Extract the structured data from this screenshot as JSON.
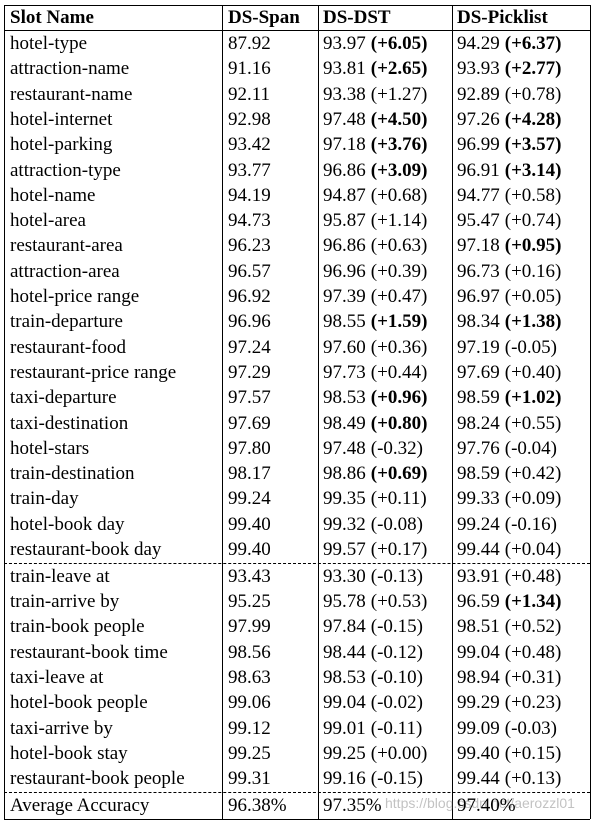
{
  "table": {
    "header": [
      "Slot Name",
      "DS-Span",
      "DS-DST",
      "DS-Picklist"
    ],
    "groups": [
      {
        "rows": [
          {
            "cells": [
              "hotel-type",
              "87.92",
              "93.97",
              "(+6.05)",
              "94.29",
              "(+6.37)"
            ],
            "bold": [
              3,
              5
            ]
          },
          {
            "cells": [
              "attraction-name",
              "91.16",
              "93.81",
              "(+2.65)",
              "93.93",
              "(+2.77)"
            ],
            "bold": [
              3,
              5
            ]
          },
          {
            "cells": [
              "restaurant-name",
              "92.11",
              "93.38",
              "(+1.27)",
              "92.89",
              "(+0.78)"
            ],
            "bold": []
          },
          {
            "cells": [
              "hotel-internet",
              "92.98",
              "97.48",
              "(+4.50)",
              "97.26",
              "(+4.28)"
            ],
            "bold": [
              3,
              5
            ]
          },
          {
            "cells": [
              "hotel-parking",
              "93.42",
              "97.18",
              "(+3.76)",
              "96.99",
              "(+3.57)"
            ],
            "bold": [
              3,
              5
            ]
          },
          {
            "cells": [
              "attraction-type",
              "93.77",
              "96.86",
              "(+3.09)",
              "96.91",
              "(+3.14)"
            ],
            "bold": [
              3,
              5
            ]
          },
          {
            "cells": [
              "hotel-name",
              "94.19",
              "94.87",
              "(+0.68)",
              "94.77",
              "(+0.58)"
            ],
            "bold": []
          },
          {
            "cells": [
              "hotel-area",
              "94.73",
              "95.87",
              "(+1.14)",
              "95.47",
              "(+0.74)"
            ],
            "bold": []
          },
          {
            "cells": [
              "restaurant-area",
              "96.23",
              "96.86",
              "(+0.63)",
              "97.18",
              "(+0.95)"
            ],
            "bold": [
              5
            ]
          },
          {
            "cells": [
              "attraction-area",
              "96.57",
              "96.96",
              "(+0.39)",
              "96.73",
              "(+0.16)"
            ],
            "bold": []
          },
          {
            "cells": [
              "hotel-price range",
              "96.92",
              "97.39",
              "(+0.47)",
              "96.97",
              "(+0.05)"
            ],
            "bold": []
          },
          {
            "cells": [
              "train-departure",
              "96.96",
              "98.55",
              "(+1.59)",
              "98.34",
              "(+1.38)"
            ],
            "bold": [
              3,
              5
            ]
          },
          {
            "cells": [
              "restaurant-food",
              "97.24",
              "97.60",
              "(+0.36)",
              "97.19",
              "(-0.05)"
            ],
            "bold": []
          },
          {
            "cells": [
              "restaurant-price range",
              "97.29",
              "97.73",
              "(+0.44)",
              "97.69",
              "(+0.40)"
            ],
            "bold": []
          },
          {
            "cells": [
              "taxi-departure",
              "97.57",
              "98.53",
              "(+0.96)",
              "98.59",
              "(+1.02)"
            ],
            "bold": [
              3,
              5
            ]
          },
          {
            "cells": [
              "taxi-destination",
              "97.69",
              "98.49",
              "(+0.80)",
              "98.24",
              "(+0.55)"
            ],
            "bold": [
              3
            ]
          },
          {
            "cells": [
              "hotel-stars",
              "97.80",
              "97.48",
              "(-0.32)",
              "97.76",
              "(-0.04)"
            ],
            "bold": []
          },
          {
            "cells": [
              "train-destination",
              "98.17",
              "98.86",
              "(+0.69)",
              "98.59",
              "(+0.42)"
            ],
            "bold": [
              3
            ]
          },
          {
            "cells": [
              "train-day",
              "99.24",
              "99.35",
              "(+0.11)",
              "99.33",
              "(+0.09)"
            ],
            "bold": []
          },
          {
            "cells": [
              "hotel-book day",
              "99.40",
              "99.32",
              "(-0.08)",
              "99.24",
              "(-0.16)"
            ],
            "bold": []
          },
          {
            "cells": [
              "restaurant-book day",
              "99.40",
              "99.57",
              "(+0.17)",
              "99.44",
              "(+0.04)"
            ],
            "bold": []
          }
        ]
      },
      {
        "rows": [
          {
            "cells": [
              "train-leave at",
              "93.43",
              "93.30",
              "(-0.13)",
              "93.91",
              "(+0.48)"
            ],
            "bold": []
          },
          {
            "cells": [
              "train-arrive by",
              "95.25",
              "95.78",
              "(+0.53)",
              "96.59",
              "(+1.34)"
            ],
            "bold": [
              5
            ]
          },
          {
            "cells": [
              "train-book people",
              "97.99",
              "97.84",
              "(-0.15)",
              "98.51",
              "(+0.52)"
            ],
            "bold": []
          },
          {
            "cells": [
              "restaurant-book time",
              "98.56",
              "98.44",
              "(-0.12)",
              "99.04",
              "(+0.48)"
            ],
            "bold": []
          },
          {
            "cells": [
              "taxi-leave at",
              "98.63",
              "98.53",
              "(-0.10)",
              "98.94",
              "(+0.31)"
            ],
            "bold": []
          },
          {
            "cells": [
              "hotel-book people",
              "99.06",
              "99.04",
              "(-0.02)",
              "99.29",
              "(+0.23)"
            ],
            "bold": []
          },
          {
            "cells": [
              "taxi-arrive by",
              "99.12",
              "99.01",
              "(-0.11)",
              "99.09",
              "(-0.03)"
            ],
            "bold": []
          },
          {
            "cells": [
              "hotel-book stay",
              "99.25",
              "99.25",
              "(+0.00)",
              "99.40",
              "(+0.15)"
            ],
            "bold": []
          },
          {
            "cells": [
              "restaurant-book people",
              "99.31",
              "99.16",
              "(-0.15)",
              "99.44",
              "(+0.13)"
            ],
            "bold": []
          }
        ]
      }
    ],
    "average": [
      "Average Accuracy",
      "96.38%",
      "97.35%",
      "97.40%"
    ]
  },
  "watermark": "https://blog.csdn.net/aerozzl01"
}
